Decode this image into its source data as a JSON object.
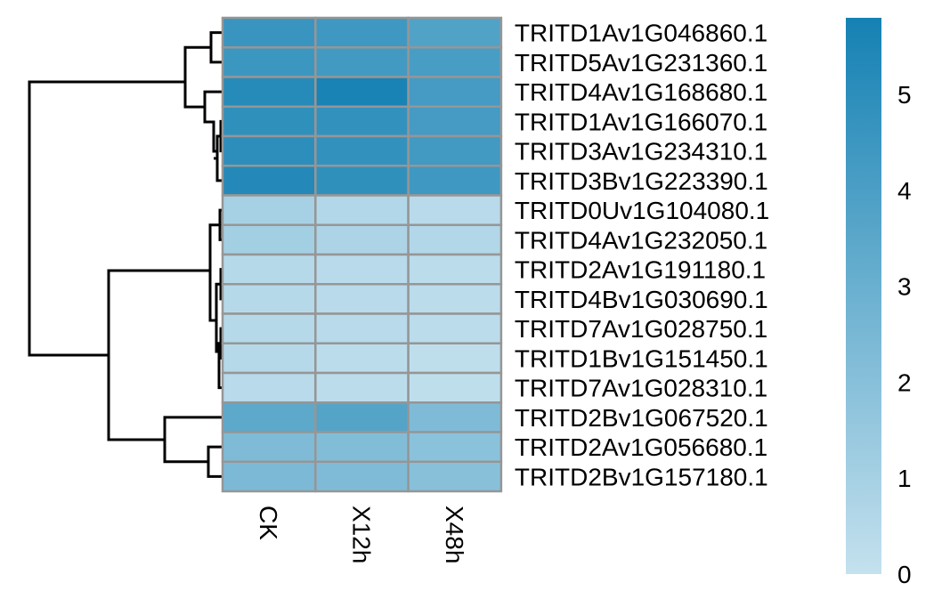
{
  "chart_data": {
    "type": "heatmap",
    "title": "",
    "xlabel": "",
    "ylabel": "",
    "columns": [
      "CK",
      "X12h",
      "X48h"
    ],
    "rows": [
      "TRITD1Av1G046860.1",
      "TRITD5Av1G231360.1",
      "TRITD4Av1G168680.1",
      "TRITD1Av1G166070.1",
      "TRITD3Av1G234310.1",
      "TRITD3Bv1G223390.1",
      "TRITD0Uv1G104080.1",
      "TRITD4Av1G232050.1",
      "TRITD2Av1G191180.1",
      "TRITD4Bv1G030690.1",
      "TRITD7Av1G028750.1",
      "TRITD1Bv1G151450.1",
      "TRITD7Av1G028310.1",
      "TRITD2Bv1G067520.1",
      "TRITD2Av1G056680.1",
      "TRITD2Bv1G157180.1"
    ],
    "values": [
      [
        4.6,
        4.4,
        3.8
      ],
      [
        4.5,
        4.3,
        4.1
      ],
      [
        5.2,
        5.7,
        4.2
      ],
      [
        4.9,
        4.8,
        4.2
      ],
      [
        5.0,
        4.8,
        4.3
      ],
      [
        5.3,
        4.9,
        4.4
      ],
      [
        1.0,
        0.6,
        0.4
      ],
      [
        1.1,
        0.8,
        0.6
      ],
      [
        0.5,
        0.4,
        0.3
      ],
      [
        0.5,
        0.4,
        0.3
      ],
      [
        0.5,
        0.4,
        0.3
      ],
      [
        0.5,
        0.3,
        0.2
      ],
      [
        0.4,
        0.3,
        0.2
      ],
      [
        3.4,
        3.7,
        2.3
      ],
      [
        2.3,
        2.2,
        1.9
      ],
      [
        2.4,
        2.3,
        2.0
      ]
    ],
    "color_scale": {
      "min": 0,
      "max": 5.8,
      "low_color": "#c4e1ee",
      "high_color": "#1581b3",
      "ticks": [
        0,
        1,
        2,
        3,
        4,
        5
      ]
    },
    "cell_border_color": "#969696",
    "dendrogram": "rows",
    "legend_position": "right"
  }
}
